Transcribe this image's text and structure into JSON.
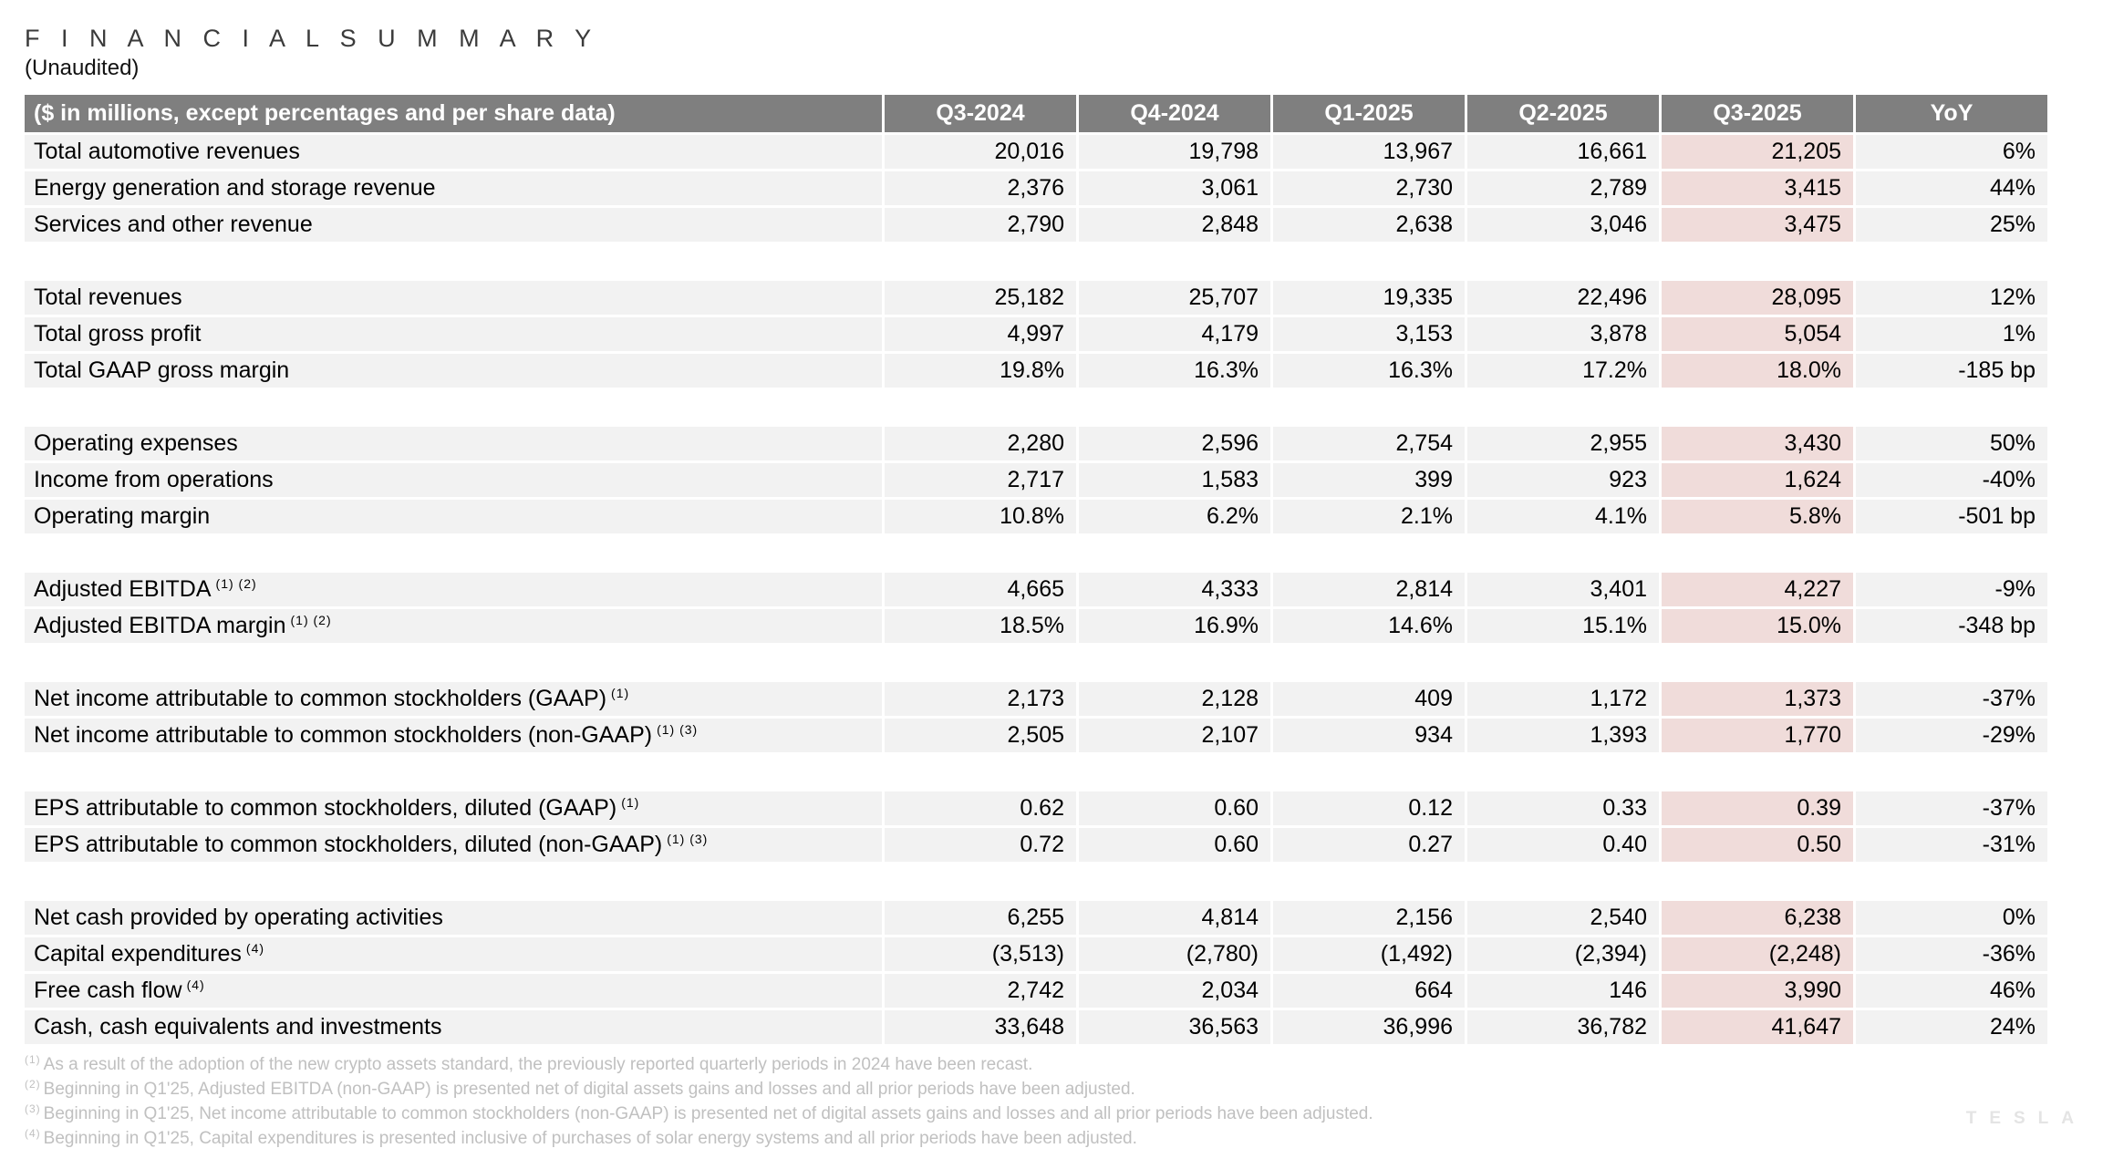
{
  "page": {
    "title": "F I N A N C I A L  S U M M A R Y",
    "subtitle": "(Unaudited)"
  },
  "table": {
    "header_label": "($ in millions, except percentages and per share data)",
    "columns": [
      "Q3-2024",
      "Q4-2024",
      "Q1-2025",
      "Q2-2025",
      "Q3-2025",
      "YoY"
    ],
    "highlight_column": "Q3-2025",
    "colors": {
      "header_bg": "#7f7f7f",
      "row_bg": "#f2f2f2",
      "highlight_bg": "#f0dcda"
    },
    "groups": [
      {
        "rows": [
          {
            "label": "Total automotive revenues",
            "sup": "",
            "values": [
              "20,016",
              "19,798",
              "13,967",
              "16,661",
              "21,205",
              "6%"
            ]
          },
          {
            "label": "Energy generation and storage revenue",
            "sup": "",
            "values": [
              "2,376",
              "3,061",
              "2,730",
              "2,789",
              "3,415",
              "44%"
            ]
          },
          {
            "label": "Services and other revenue",
            "sup": "",
            "values": [
              "2,790",
              "2,848",
              "2,638",
              "3,046",
              "3,475",
              "25%"
            ]
          }
        ]
      },
      {
        "rows": [
          {
            "label": "Total revenues",
            "sup": "",
            "values": [
              "25,182",
              "25,707",
              "19,335",
              "22,496",
              "28,095",
              "12%"
            ]
          },
          {
            "label": "Total gross profit",
            "sup": "",
            "values": [
              "4,997",
              "4,179",
              "3,153",
              "3,878",
              "5,054",
              "1%"
            ]
          },
          {
            "label": "Total GAAP gross margin",
            "sup": "",
            "values": [
              "19.8%",
              "16.3%",
              "16.3%",
              "17.2%",
              "18.0%",
              "-185 bp"
            ]
          }
        ]
      },
      {
        "rows": [
          {
            "label": "Operating expenses",
            "sup": "",
            "values": [
              "2,280",
              "2,596",
              "2,754",
              "2,955",
              "3,430",
              "50%"
            ]
          },
          {
            "label": "Income from operations",
            "sup": "",
            "values": [
              "2,717",
              "1,583",
              "399",
              "923",
              "1,624",
              "-40%"
            ]
          },
          {
            "label": "Operating margin",
            "sup": "",
            "values": [
              "10.8%",
              "6.2%",
              "2.1%",
              "4.1%",
              "5.8%",
              "-501 bp"
            ]
          }
        ]
      },
      {
        "rows": [
          {
            "label": "Adjusted EBITDA",
            "sup": "(1) (2)",
            "values": [
              "4,665",
              "4,333",
              "2,814",
              "3,401",
              "4,227",
              "-9%"
            ]
          },
          {
            "label": "Adjusted EBITDA margin",
            "sup": "(1) (2)",
            "values": [
              "18.5%",
              "16.9%",
              "14.6%",
              "15.1%",
              "15.0%",
              "-348 bp"
            ]
          }
        ]
      },
      {
        "rows": [
          {
            "label": "Net income attributable to common stockholders (GAAP)",
            "sup": "(1)",
            "values": [
              "2,173",
              "2,128",
              "409",
              "1,172",
              "1,373",
              "-37%"
            ]
          },
          {
            "label": "Net income attributable to common stockholders (non-GAAP)",
            "sup": "(1) (3)",
            "values": [
              "2,505",
              "2,107",
              "934",
              "1,393",
              "1,770",
              "-29%"
            ]
          }
        ]
      },
      {
        "rows": [
          {
            "label": "EPS attributable to common stockholders, diluted (GAAP)",
            "sup": "(1)",
            "values": [
              "0.62",
              "0.60",
              "0.12",
              "0.33",
              "0.39",
              "-37%"
            ]
          },
          {
            "label": "EPS attributable to common stockholders, diluted (non-GAAP)",
            "sup": "(1) (3)",
            "values": [
              "0.72",
              "0.60",
              "0.27",
              "0.40",
              "0.50",
              "-31%"
            ]
          }
        ]
      },
      {
        "rows": [
          {
            "label": "Net cash provided by operating activities",
            "sup": "",
            "values": [
              "6,255",
              "4,814",
              "2,156",
              "2,540",
              "6,238",
              "0%"
            ]
          },
          {
            "label": "Capital expenditures",
            "sup": "(4)",
            "values": [
              "(3,513)",
              "(2,780)",
              "(1,492)",
              "(2,394)",
              "(2,248)",
              "-36%"
            ]
          },
          {
            "label": "Free cash flow",
            "sup": "(4)",
            "values": [
              "2,742",
              "2,034",
              "664",
              "146",
              "3,990",
              "46%"
            ]
          },
          {
            "label": "Cash, cash equivalents and investments",
            "sup": "",
            "values": [
              "33,648",
              "36,563",
              "36,996",
              "36,782",
              "41,647",
              "24%"
            ]
          }
        ]
      }
    ]
  },
  "footnotes": [
    {
      "marker": "(1)",
      "text": "As a result of the adoption of the new crypto assets standard, the previously reported quarterly periods in 2024 have been recast."
    },
    {
      "marker": "(2)",
      "text": "Beginning in Q1'25, Adjusted EBITDA (non-GAAP) is presented net of digital assets gains and losses and all prior periods have been adjusted."
    },
    {
      "marker": "(3)",
      "text": "Beginning in Q1'25, Net income attributable to common stockholders (non-GAAP) is presented net of digital assets gains and losses and all prior periods have been adjusted."
    },
    {
      "marker": "(4)",
      "text": "Beginning in Q1'25, Capital expenditures is presented inclusive of purchases of solar energy systems and all prior periods have been adjusted."
    }
  ],
  "watermark": "TESLA"
}
